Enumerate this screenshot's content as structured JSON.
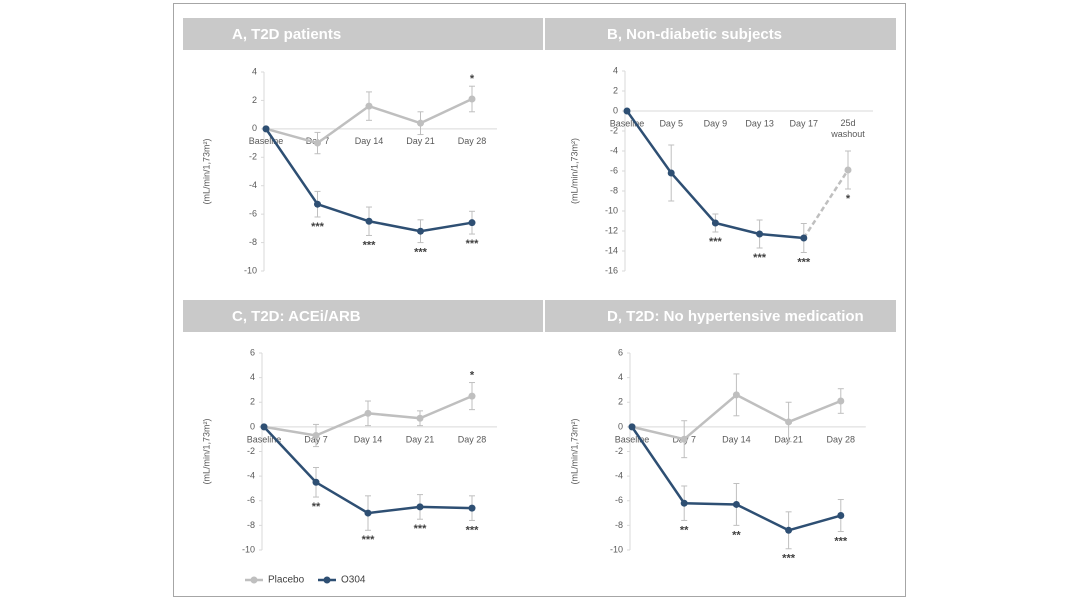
{
  "chart_data": [
    {
      "type": "line",
      "title": "A, T2D patients",
      "y_label": "(mL/min/1,73m²)",
      "categories": [
        "Baseline",
        "Day 7",
        "Day 14",
        "Day 21",
        "Day 28"
      ],
      "ylim": [
        -10,
        4
      ],
      "yticks": [
        -10,
        -8,
        -6,
        -4,
        -2,
        0,
        2,
        4
      ],
      "series": [
        {
          "name": "Placebo",
          "color": "#bfbfbf",
          "values": [
            0,
            -1.0,
            1.6,
            0.4,
            2.1
          ],
          "errors": [
            null,
            0.75,
            1.0,
            0.8,
            0.9
          ],
          "significance": [
            null,
            null,
            null,
            null,
            "*"
          ]
        },
        {
          "name": "O304",
          "color": "#2e4f73",
          "values": [
            0,
            -5.3,
            -6.5,
            -7.2,
            -6.6
          ],
          "errors": [
            null,
            0.9,
            1.0,
            0.8,
            0.8
          ],
          "significance": [
            null,
            "***",
            "***",
            "***",
            "***"
          ]
        }
      ]
    },
    {
      "type": "line",
      "title": "B, Non-diabetic subjects",
      "y_label": "(mL/min/1,73m²)",
      "categories": [
        "Baseline",
        "Day 5",
        "Day 9",
        "Day 13",
        "Day 17",
        "25d\nwashout"
      ],
      "ylim": [
        -16,
        4
      ],
      "yticks": [
        -16,
        -14,
        -12,
        -10,
        -8,
        -6,
        -4,
        -2,
        0,
        2,
        4
      ],
      "series": [
        {
          "name": "O304",
          "color": "#2e4f73",
          "values": [
            0,
            -6.2,
            -11.2,
            -12.3,
            -12.7,
            -5.9
          ],
          "errors": [
            null,
            2.8,
            0.9,
            1.4,
            1.45,
            1.9
          ],
          "significance": [
            null,
            null,
            "***",
            "***",
            "***",
            "*"
          ],
          "washout_color": "#bfbfbf"
        }
      ]
    },
    {
      "type": "line",
      "title": "C, T2D: ACEi/ARB",
      "y_label": "(mL/min/1,73m²)",
      "categories": [
        "Baseline",
        "Day 7",
        "Day 14",
        "Day 21",
        "Day 28"
      ],
      "ylim": [
        -10,
        6
      ],
      "yticks": [
        -10,
        -8,
        -6,
        -4,
        -2,
        0,
        2,
        4,
        6
      ],
      "series": [
        {
          "name": "Placebo",
          "color": "#bfbfbf",
          "values": [
            0,
            -0.7,
            1.1,
            0.7,
            2.5
          ],
          "errors": [
            null,
            0.9,
            1.0,
            0.6,
            1.1
          ],
          "significance": [
            null,
            null,
            null,
            null,
            "*"
          ]
        },
        {
          "name": "O304",
          "color": "#2e4f73",
          "values": [
            0,
            -4.5,
            -7.0,
            -6.5,
            -6.6
          ],
          "errors": [
            null,
            1.2,
            1.4,
            1.0,
            1.0
          ],
          "significance": [
            null,
            "**",
            "***",
            "***",
            "***"
          ]
        }
      ]
    },
    {
      "type": "line",
      "title": "D, T2D: No hypertensive medication",
      "y_label": "(mL/min/1,73m²)",
      "categories": [
        "Baseline",
        "Day 7",
        "Day 14",
        "Day 21",
        "Day 28"
      ],
      "ylim": [
        -10,
        6
      ],
      "yticks": [
        -10,
        -8,
        -6,
        -4,
        -2,
        0,
        2,
        4,
        6
      ],
      "series": [
        {
          "name": "Placebo",
          "color": "#bfbfbf",
          "values": [
            0,
            -1.0,
            2.6,
            0.4,
            2.1
          ],
          "errors": [
            null,
            1.5,
            1.7,
            1.6,
            1.0
          ],
          "significance": [
            null,
            null,
            null,
            null,
            null
          ]
        },
        {
          "name": "O304",
          "color": "#2e4f73",
          "values": [
            0,
            -6.2,
            -6.3,
            -8.4,
            -7.2
          ],
          "errors": [
            null,
            1.4,
            1.7,
            1.5,
            1.3
          ],
          "significance": [
            null,
            "**",
            "**",
            "***",
            "***"
          ]
        }
      ]
    }
  ]
}
